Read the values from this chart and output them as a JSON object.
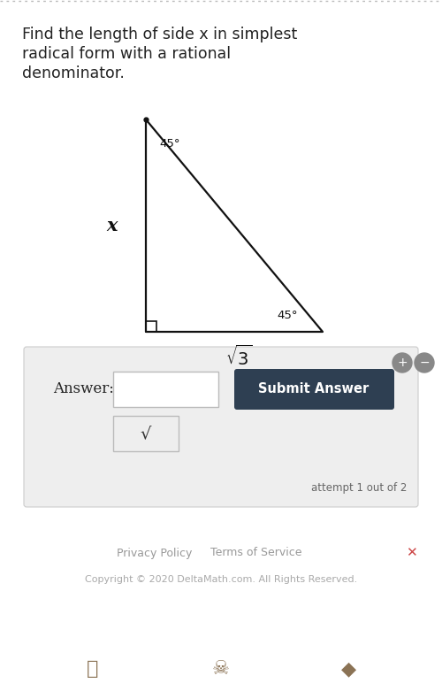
{
  "bg_top_color": "#ffffff",
  "bg_bottom_color": "#e8e8e8",
  "card_color": "#ffffff",
  "title_lines": [
    "Find the length of side x in simplest",
    "radical form with a rational",
    "denominator."
  ],
  "title_fontsize": 12.5,
  "title_color": "#222222",
  "label_x": "x",
  "label_bottom": "$\\sqrt{3}$",
  "label_angle_top": "45°",
  "label_angle_br": "45°",
  "answer_label": "Answer:",
  "submit_btn_color": "#2e3f52",
  "submit_btn_text": "Submit Answer",
  "submit_btn_text_color": "#ffffff",
  "attempt_text": "attempt 1 out of 2",
  "footer_text1_left": "Privacy Policy",
  "footer_text1_right": "Terms of Service",
  "footer_text2": "Copyright © 2020 DeltaMath.com. All Rights Reserved.",
  "footer_color": "#aaaaaa",
  "dotted_line_color": "#bbbbbb",
  "tri_color": "#111111",
  "answer_panel_color": "#eeeeee",
  "answer_panel_border": "#cccccc"
}
